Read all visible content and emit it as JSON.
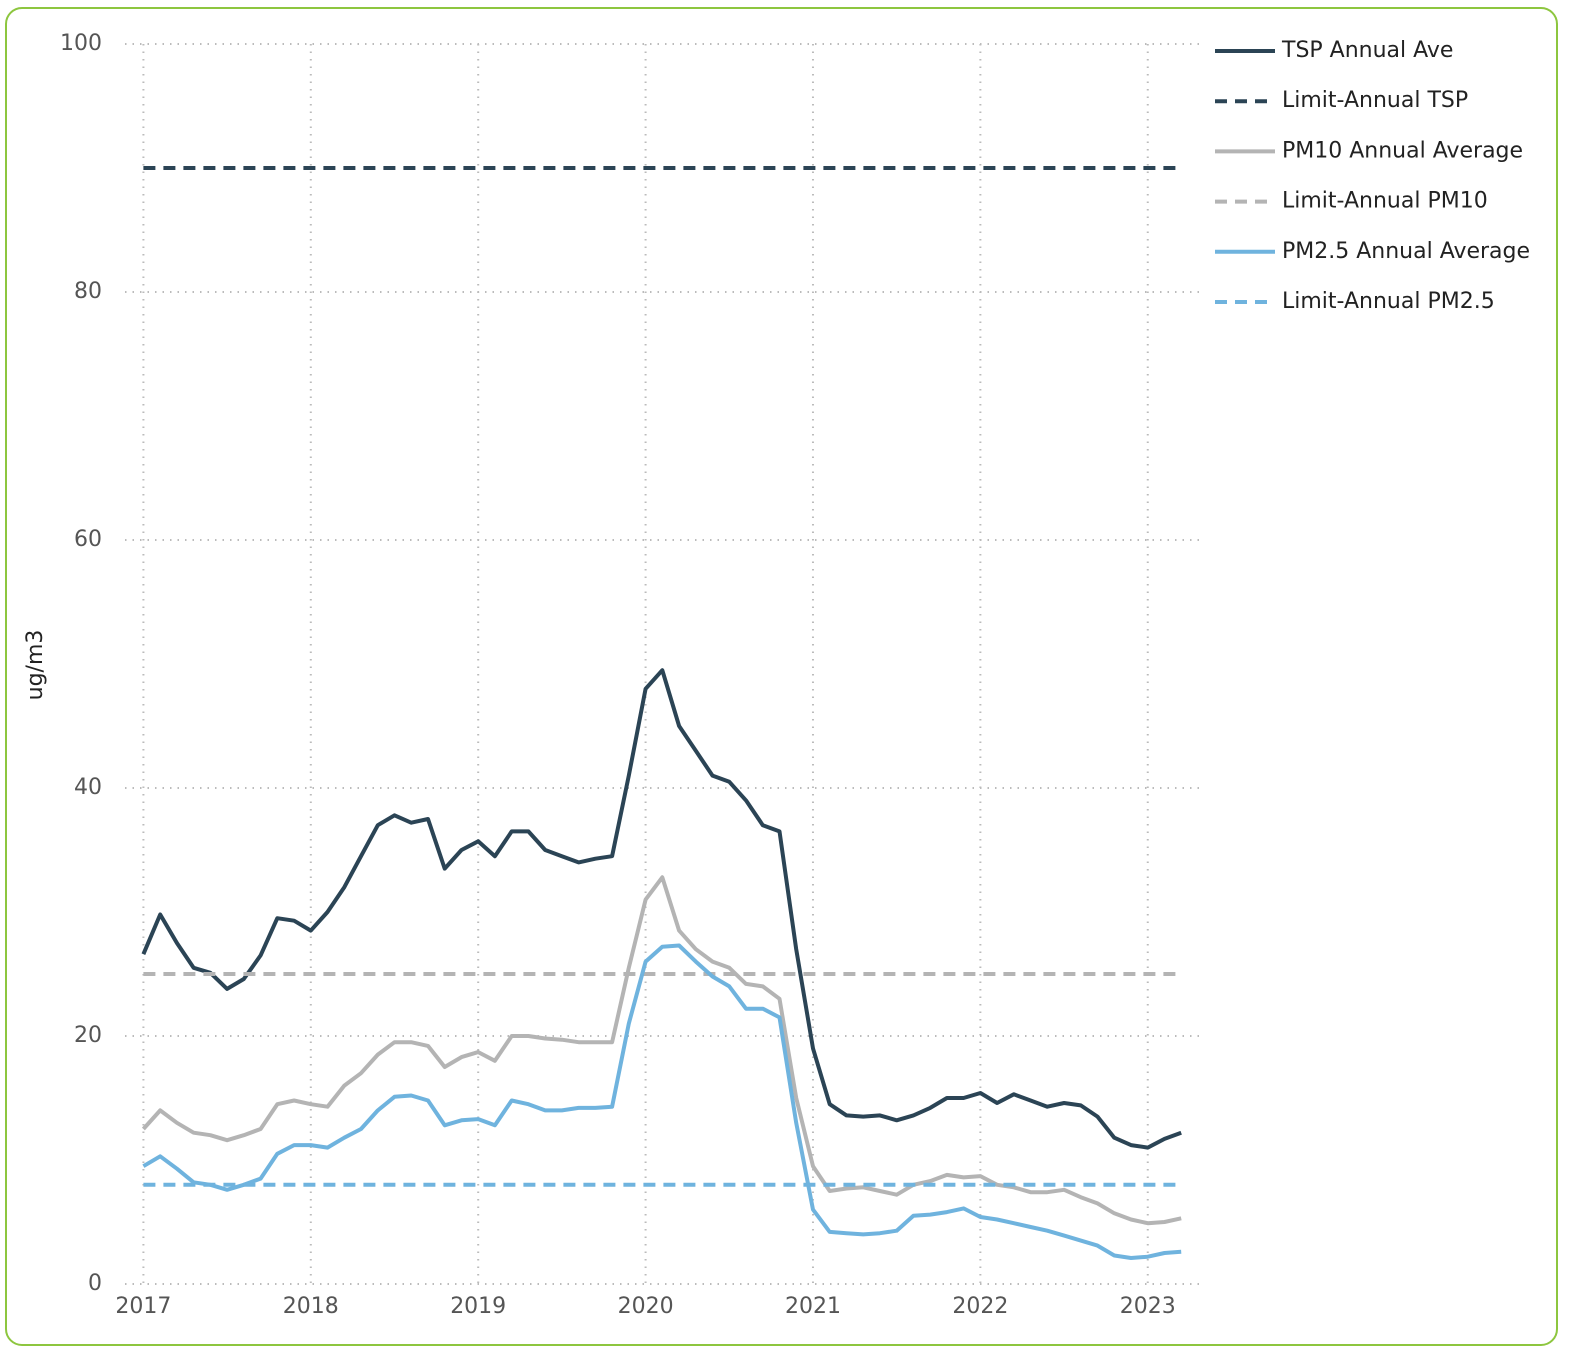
{
  "chart_data": {
    "type": "line",
    "y_label": "ug/m3",
    "x": [
      2017,
      2017.1,
      2017.2,
      2017.3,
      2017.4,
      2017.5,
      2017.6,
      2017.7,
      2017.8,
      2017.9,
      2018,
      2018.1,
      2018.2,
      2018.3,
      2018.4,
      2018.5,
      2018.6,
      2018.7,
      2018.8,
      2018.9,
      2019,
      2019.1,
      2019.2,
      2019.3,
      2019.4,
      2019.5,
      2019.6,
      2019.7,
      2019.8,
      2019.9,
      2020,
      2020.1,
      2020.2,
      2020.3,
      2020.4,
      2020.5,
      2020.6,
      2020.7,
      2020.8,
      2020.9,
      2021,
      2021.1,
      2021.2,
      2021.3,
      2021.4,
      2021.5,
      2021.6,
      2021.7,
      2021.8,
      2021.9,
      2022,
      2022.1,
      2022.2,
      2022.3,
      2022.4,
      2022.5,
      2022.6,
      2022.7,
      2022.8,
      2022.9,
      2023,
      2023.1,
      2023.2
    ],
    "xlim": [
      2016.89,
      2023.33
    ],
    "xticks": [
      2017,
      2018,
      2019,
      2020,
      2021,
      2022,
      2023
    ],
    "ylim": [
      0,
      100
    ],
    "yticks": [
      0,
      20,
      40,
      60,
      80,
      100
    ],
    "grid": true,
    "legend": "right",
    "series": [
      {
        "name": "TSP Annual Ave",
        "color": "#2b4455",
        "dashed": false,
        "values": [
          26.6,
          29.8,
          27.5,
          25.5,
          25.1,
          23.8,
          24.6,
          26.5,
          29.5,
          29.3,
          28.5,
          30,
          32,
          34.5,
          37,
          37.8,
          37.2,
          37.5,
          33.5,
          35,
          35.7,
          34.5,
          36.5,
          36.5,
          35,
          34.5,
          34,
          34.3,
          34.5,
          41,
          48,
          49.5,
          45,
          43,
          41,
          40.5,
          39,
          37,
          36.5,
          27,
          19,
          14.5,
          13.6,
          13.5,
          13.6,
          13.2,
          13.6,
          14.2,
          15,
          15,
          15.4,
          14.6,
          15.3,
          14.8,
          14.3,
          14.6,
          14.4,
          13.5,
          11.8,
          11.2,
          11,
          11.7,
          12.2
        ]
      },
      {
        "name": "Limit-Annual TSP",
        "color": "#2b4455",
        "dashed": true,
        "values": [
          90,
          90,
          90,
          90,
          90,
          90,
          90,
          90,
          90,
          90,
          90,
          90,
          90,
          90,
          90,
          90,
          90,
          90,
          90,
          90,
          90,
          90,
          90,
          90,
          90,
          90,
          90,
          90,
          90,
          90,
          90,
          90,
          90,
          90,
          90,
          90,
          90,
          90,
          90,
          90,
          90,
          90,
          90,
          90,
          90,
          90,
          90,
          90,
          90,
          90,
          90,
          90,
          90,
          90,
          90,
          90,
          90,
          90,
          90,
          90,
          90,
          90,
          90
        ]
      },
      {
        "name": "PM10 Annual Average",
        "color": "#b4b4b4",
        "dashed": false,
        "values": [
          12.5,
          14,
          13,
          12.2,
          12,
          11.6,
          12,
          12.5,
          14.5,
          14.8,
          14.5,
          14.3,
          16,
          17,
          18.5,
          19.5,
          19.5,
          19.2,
          17.5,
          18.3,
          18.7,
          18,
          20,
          20,
          19.8,
          19.7,
          19.5,
          19.5,
          19.5,
          25.5,
          31,
          32.8,
          28.5,
          27,
          26,
          25.5,
          24.2,
          24,
          23,
          15,
          9.5,
          7.5,
          7.7,
          7.8,
          7.5,
          7.2,
          8,
          8.3,
          8.8,
          8.6,
          8.7,
          8,
          7.8,
          7.4,
          7.4,
          7.6,
          7,
          6.5,
          5.7,
          5.2,
          4.9,
          5,
          5.3
        ]
      },
      {
        "name": "Limit-Annual PM10",
        "color": "#b4b4b4",
        "dashed": true,
        "values": [
          25,
          25,
          25,
          25,
          25,
          25,
          25,
          25,
          25,
          25,
          25,
          25,
          25,
          25,
          25,
          25,
          25,
          25,
          25,
          25,
          25,
          25,
          25,
          25,
          25,
          25,
          25,
          25,
          25,
          25,
          25,
          25,
          25,
          25,
          25,
          25,
          25,
          25,
          25,
          25,
          25,
          25,
          25,
          25,
          25,
          25,
          25,
          25,
          25,
          25,
          25,
          25,
          25,
          25,
          25,
          25,
          25,
          25,
          25,
          25,
          25,
          25,
          25
        ]
      },
      {
        "name": "PM2.5 Annual Average",
        "color": "#6fb3de",
        "dashed": false,
        "values": [
          9.5,
          10.3,
          9.3,
          8.2,
          8,
          7.6,
          8,
          8.5,
          10.5,
          11.2,
          11.2,
          11,
          11.8,
          12.5,
          14,
          15.1,
          15.2,
          14.8,
          12.8,
          13.2,
          13.3,
          12.8,
          14.8,
          14.5,
          14,
          14,
          14.2,
          14.2,
          14.3,
          21,
          26,
          27.2,
          27.3,
          26,
          24.8,
          24,
          22.2,
          22.2,
          21.5,
          13,
          6,
          4.2,
          4.1,
          4,
          4.1,
          4.3,
          5.5,
          5.6,
          5.8,
          6.1,
          5.4,
          5.2,
          4.9,
          4.6,
          4.3,
          3.9,
          3.5,
          3.1,
          2.3,
          2.1,
          2.2,
          2.5,
          2.6
        ]
      },
      {
        "name": "Limit-Annual PM2.5",
        "color": "#6fb3de",
        "dashed": true,
        "values": [
          8,
          8,
          8,
          8,
          8,
          8,
          8,
          8,
          8,
          8,
          8,
          8,
          8,
          8,
          8,
          8,
          8,
          8,
          8,
          8,
          8,
          8,
          8,
          8,
          8,
          8,
          8,
          8,
          8,
          8,
          8,
          8,
          8,
          8,
          8,
          8,
          8,
          8,
          8,
          8,
          8,
          8,
          8,
          8,
          8,
          8,
          8,
          8,
          8,
          8,
          8,
          8,
          8,
          8,
          8,
          8,
          8,
          8,
          8,
          8,
          8,
          8,
          8
        ]
      }
    ]
  }
}
